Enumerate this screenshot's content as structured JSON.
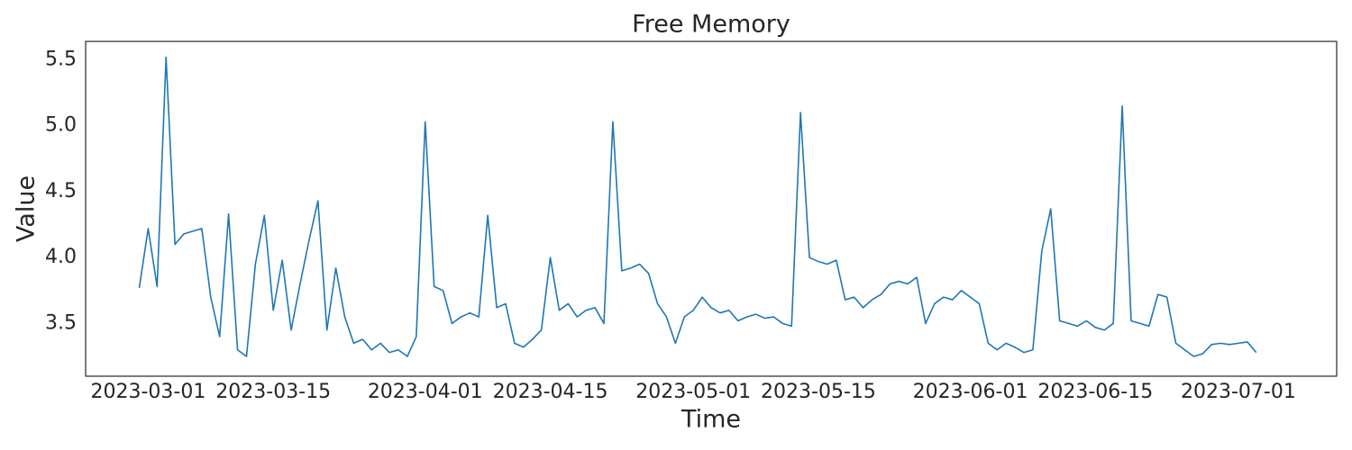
{
  "chart_data": {
    "type": "line",
    "title": "Free Memory",
    "xlabel": "Time",
    "ylabel": "Value",
    "color": "#1f77b4",
    "grid": false,
    "x": [
      "2023-02-28",
      "2023-03-01",
      "2023-03-02",
      "2023-03-03",
      "2023-03-04",
      "2023-03-05",
      "2023-03-06",
      "2023-03-07",
      "2023-03-08",
      "2023-03-09",
      "2023-03-10",
      "2023-03-11",
      "2023-03-12",
      "2023-03-13",
      "2023-03-14",
      "2023-03-15",
      "2023-03-16",
      "2023-03-17",
      "2023-03-18",
      "2023-03-19",
      "2023-03-20",
      "2023-03-21",
      "2023-03-22",
      "2023-03-23",
      "2023-03-24",
      "2023-03-25",
      "2023-03-26",
      "2023-03-27",
      "2023-03-28",
      "2023-03-29",
      "2023-03-30",
      "2023-03-31",
      "2023-04-01",
      "2023-04-02",
      "2023-04-03",
      "2023-04-04",
      "2023-04-05",
      "2023-04-06",
      "2023-04-07",
      "2023-04-08",
      "2023-04-09",
      "2023-04-10",
      "2023-04-11",
      "2023-04-12",
      "2023-04-13",
      "2023-04-14",
      "2023-04-15",
      "2023-04-16",
      "2023-04-17",
      "2023-04-18",
      "2023-04-19",
      "2023-04-20",
      "2023-04-21",
      "2023-04-22",
      "2023-04-23",
      "2023-04-24",
      "2023-04-25",
      "2023-04-26",
      "2023-04-27",
      "2023-04-28",
      "2023-04-29",
      "2023-04-30",
      "2023-05-01",
      "2023-05-02",
      "2023-05-03",
      "2023-05-04",
      "2023-05-05",
      "2023-05-06",
      "2023-05-07",
      "2023-05-08",
      "2023-05-09",
      "2023-05-10",
      "2023-05-11",
      "2023-05-12",
      "2023-05-13",
      "2023-05-14",
      "2023-05-15",
      "2023-05-16",
      "2023-05-17",
      "2023-05-18",
      "2023-05-19",
      "2023-05-20",
      "2023-05-21",
      "2023-05-22",
      "2023-05-23",
      "2023-05-24",
      "2023-05-25",
      "2023-05-26",
      "2023-05-27",
      "2023-05-28",
      "2023-05-29",
      "2023-05-30",
      "2023-05-31",
      "2023-06-01",
      "2023-06-02",
      "2023-06-03",
      "2023-06-04",
      "2023-06-05",
      "2023-06-06",
      "2023-06-07",
      "2023-06-08",
      "2023-06-09",
      "2023-06-10",
      "2023-06-11",
      "2023-06-12",
      "2023-06-13",
      "2023-06-14",
      "2023-06-15",
      "2023-06-16",
      "2023-06-17",
      "2023-06-18",
      "2023-06-19",
      "2023-06-20",
      "2023-06-21",
      "2023-06-22",
      "2023-06-23",
      "2023-06-24",
      "2023-06-25",
      "2023-06-26",
      "2023-06-27",
      "2023-06-28",
      "2023-06-29",
      "2023-06-30",
      "2023-07-01",
      "2023-07-02",
      "2023-07-03"
    ],
    "values": [
      3.77,
      4.22,
      3.78,
      5.52,
      4.1,
      4.18,
      4.2,
      4.22,
      3.7,
      3.4,
      4.33,
      3.3,
      3.25,
      3.95,
      4.32,
      3.6,
      3.98,
      3.45,
      3.8,
      4.13,
      4.43,
      3.45,
      3.92,
      3.55,
      3.35,
      3.38,
      3.3,
      3.35,
      3.28,
      3.3,
      3.25,
      3.4,
      5.03,
      3.78,
      3.75,
      3.5,
      3.55,
      3.58,
      3.55,
      4.32,
      3.62,
      3.65,
      3.35,
      3.32,
      3.38,
      3.45,
      4.0,
      3.6,
      3.65,
      3.55,
      3.6,
      3.62,
      3.5,
      5.03,
      3.9,
      3.92,
      3.95,
      3.88,
      3.65,
      3.55,
      3.35,
      3.55,
      3.6,
      3.7,
      3.62,
      3.58,
      3.6,
      3.52,
      3.55,
      3.57,
      3.54,
      3.55,
      3.5,
      3.48,
      5.1,
      4.0,
      3.97,
      3.95,
      3.98,
      3.68,
      3.7,
      3.62,
      3.68,
      3.72,
      3.8,
      3.82,
      3.8,
      3.85,
      3.5,
      3.65,
      3.7,
      3.68,
      3.75,
      3.7,
      3.65,
      3.35,
      3.3,
      3.35,
      3.32,
      3.28,
      3.3,
      4.05,
      4.37,
      3.52,
      3.5,
      3.48,
      3.52,
      3.47,
      3.45,
      3.5,
      5.15,
      3.52,
      3.5,
      3.48,
      3.72,
      3.7,
      3.35,
      3.3,
      3.25,
      3.27,
      3.34,
      3.35,
      3.34,
      3.35,
      3.36,
      3.28
    ],
    "xlim": [
      "2023-02-22",
      "2023-07-12"
    ],
    "xticks": [
      "2023-03-01",
      "2023-03-15",
      "2023-04-01",
      "2023-04-15",
      "2023-05-01",
      "2023-05-15",
      "2023-06-01",
      "2023-06-15",
      "2023-07-01"
    ],
    "ylim": [
      3.1,
      5.64
    ],
    "yticks": [
      3.5,
      {
        "value": 4,
        "label": "4.0"
      },
      4.5,
      {
        "value": 5,
        "label": "5.0"
      },
      5.5
    ]
  }
}
